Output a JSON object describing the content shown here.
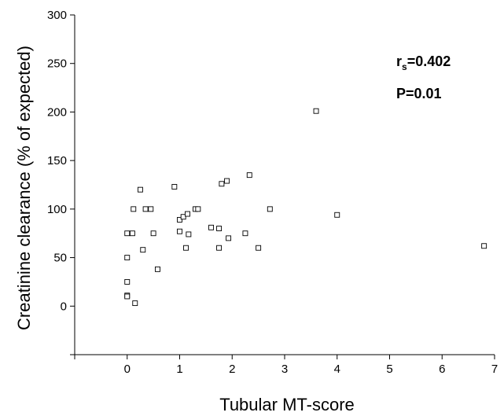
{
  "chart_data": {
    "type": "scatter",
    "title": "",
    "xlabel": "Tubular MT-score",
    "ylabel": "Creatinine clearance (% of expected)",
    "xlim": [
      -1,
      7
    ],
    "ylim": [
      -50,
      300
    ],
    "x_ticks": [
      "0",
      "1",
      "2",
      "3",
      "4",
      "5",
      "6",
      "7"
    ],
    "y_ticks": [
      "0",
      "50",
      "100",
      "150",
      "200",
      "250",
      "300"
    ],
    "grid": false,
    "legend": "none",
    "marker": "open-square",
    "marker_color": "#000000",
    "annotations": {
      "rs_main": "r",
      "rs_sub": "s",
      "rs_value": "=0.402",
      "p_value": "P=0.01"
    },
    "points": [
      {
        "x": 0.0,
        "y": 75
      },
      {
        "x": 0.0,
        "y": 50
      },
      {
        "x": 0.0,
        "y": 25
      },
      {
        "x": 0.0,
        "y": 11
      },
      {
        "x": 0.0,
        "y": 10
      },
      {
        "x": 0.1,
        "y": 75
      },
      {
        "x": 0.12,
        "y": 100
      },
      {
        "x": 0.15,
        "y": 3
      },
      {
        "x": 0.25,
        "y": 120
      },
      {
        "x": 0.3,
        "y": 58
      },
      {
        "x": 0.35,
        "y": 100
      },
      {
        "x": 0.45,
        "y": 100
      },
      {
        "x": 0.5,
        "y": 75
      },
      {
        "x": 0.58,
        "y": 38
      },
      {
        "x": 0.9,
        "y": 123
      },
      {
        "x": 1.0,
        "y": 89
      },
      {
        "x": 1.0,
        "y": 77
      },
      {
        "x": 1.07,
        "y": 92
      },
      {
        "x": 1.12,
        "y": 60
      },
      {
        "x": 1.15,
        "y": 95
      },
      {
        "x": 1.17,
        "y": 74
      },
      {
        "x": 1.3,
        "y": 100
      },
      {
        "x": 1.35,
        "y": 100
      },
      {
        "x": 1.6,
        "y": 81
      },
      {
        "x": 1.75,
        "y": 80
      },
      {
        "x": 1.75,
        "y": 60
      },
      {
        "x": 1.8,
        "y": 126
      },
      {
        "x": 1.9,
        "y": 129
      },
      {
        "x": 1.93,
        "y": 70
      },
      {
        "x": 2.25,
        "y": 75
      },
      {
        "x": 2.33,
        "y": 135
      },
      {
        "x": 2.5,
        "y": 60
      },
      {
        "x": 2.72,
        "y": 100
      },
      {
        "x": 3.6,
        "y": 201
      },
      {
        "x": 4.0,
        "y": 94
      },
      {
        "x": 6.8,
        "y": 62
      }
    ]
  }
}
